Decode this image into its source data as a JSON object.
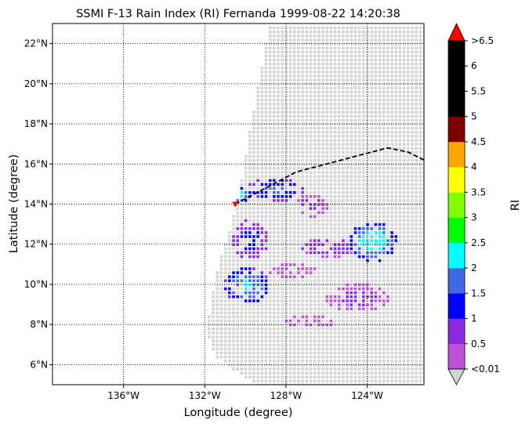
{
  "chart_data": {
    "type": "heatmap",
    "title": "SSMI F-13 Rain Index (RI) Fernanda 1999-08-22 14:20:38",
    "xlabel": "Longitude (degree)",
    "ylabel": "Latitude (degree)",
    "xlim": [
      -139.5,
      -121.2
    ],
    "ylim": [
      5,
      23
    ],
    "grid": "dotted",
    "x_ticks": [
      {
        "value": -136,
        "label": "136°W"
      },
      {
        "value": -132,
        "label": "132°W"
      },
      {
        "value": -128,
        "label": "128°W"
      },
      {
        "value": -124,
        "label": "124°W"
      }
    ],
    "y_ticks": [
      {
        "value": 6,
        "label": "6°N"
      },
      {
        "value": 8,
        "label": "8°N"
      },
      {
        "value": 10,
        "label": "10°N"
      },
      {
        "value": 12,
        "label": "12°N"
      },
      {
        "value": 14,
        "label": "14°N"
      },
      {
        "value": 16,
        "label": "16°N"
      },
      {
        "value": 18,
        "label": "18°N"
      },
      {
        "value": 20,
        "label": "20°N"
      },
      {
        "value": 22,
        "label": "22°N"
      }
    ],
    "no_rain_color": "#d3d3d3",
    "swath_polygon": [
      [
        -128.9,
        23
      ],
      [
        -121.2,
        23
      ],
      [
        -121.2,
        5
      ],
      [
        -129.5,
        5
      ],
      [
        -131.6,
        6.5
      ],
      [
        -132.0,
        7.8
      ],
      [
        -131.4,
        11
      ],
      [
        -130.5,
        14.0
      ]
    ],
    "colorbar": {
      "label": "RI",
      "ticks": [
        "<0.01",
        "0.5",
        "1",
        "1.5",
        "2",
        "2.5",
        "3",
        "3.5",
        "4",
        "4.5",
        "5",
        "5.5",
        "6",
        ">6.5"
      ],
      "colors": [
        "#c050d8",
        "#8a2be2",
        "#0000ff",
        "#4169e1",
        "#00ffff",
        "#00ff00",
        "#7fff00",
        "#ffff00",
        "#ffa500",
        "#800000",
        "#000000",
        "#000000",
        "#000000"
      ],
      "over_color": "#ff0000",
      "under_color": "#d3d3d3"
    },
    "rain_clusters": [
      {
        "lon": -130.0,
        "lat": 10.0,
        "rx": 1.1,
        "ry": 0.9,
        "peak": 2.1
      },
      {
        "lon": -129.8,
        "lat": 12.3,
        "rx": 0.9,
        "ry": 1.0,
        "peak": 1.2
      },
      {
        "lon": -130.4,
        "lat": 14.5,
        "rx": 0.6,
        "ry": 0.4,
        "peak": 2.3
      },
      {
        "lon": -128.6,
        "lat": 14.8,
        "rx": 1.4,
        "ry": 0.6,
        "peak": 1.6
      },
      {
        "lon": -123.8,
        "lat": 12.2,
        "rx": 1.2,
        "ry": 1.0,
        "peak": 2.4
      },
      {
        "lon": -126.0,
        "lat": 11.9,
        "rx": 1.4,
        "ry": 0.5,
        "peak": 0.9
      },
      {
        "lon": -126.8,
        "lat": 14.0,
        "rx": 0.8,
        "ry": 0.6,
        "peak": 0.7
      },
      {
        "lon": -124.5,
        "lat": 9.4,
        "rx": 1.6,
        "ry": 0.7,
        "peak": 0.6
      },
      {
        "lon": -127.8,
        "lat": 10.8,
        "rx": 1.2,
        "ry": 0.4,
        "peak": 0.5
      },
      {
        "lon": -126.9,
        "lat": 8.2,
        "rx": 1.2,
        "ry": 0.35,
        "peak": 0.4
      }
    ],
    "track_line": {
      "style": "dashed",
      "color": "#000000",
      "points": [
        [
          -130.5,
          14.0
        ],
        [
          -129.0,
          14.8
        ],
        [
          -127.5,
          15.6
        ],
        [
          -126.0,
          16.0
        ],
        [
          -124.5,
          16.4
        ],
        [
          -123.0,
          16.8
        ],
        [
          -122.0,
          16.6
        ],
        [
          -121.2,
          16.2
        ]
      ]
    },
    "storm_marker": {
      "lon": -130.5,
      "lat": 14.0,
      "color": "#ff0000"
    }
  }
}
